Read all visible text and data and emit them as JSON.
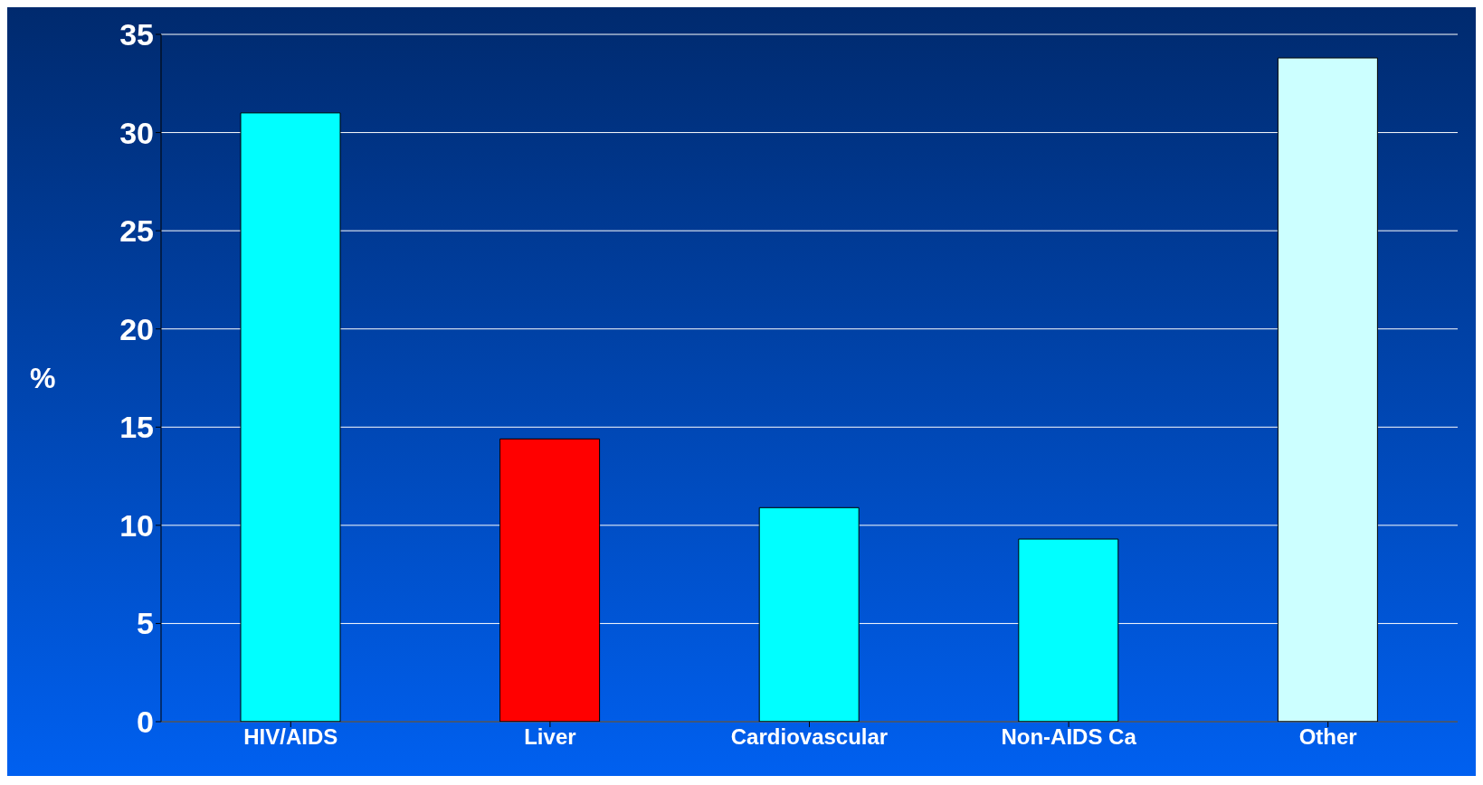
{
  "chart_data": {
    "type": "bar",
    "ylabel": "%",
    "categories": [
      "HIV/AIDS",
      "Liver",
      "Cardiovascular",
      "Non-AIDS Ca",
      "Other"
    ],
    "values": [
      31,
      14.4,
      10.9,
      9.3,
      33.8
    ],
    "colors": [
      "#00ffff",
      "#ff0000",
      "#00ffff",
      "#00ffff",
      "#ccffff"
    ],
    "ylim": [
      0,
      35
    ],
    "yticks": [
      0,
      5,
      10,
      15,
      20,
      25,
      30,
      35
    ],
    "grid": "y"
  }
}
